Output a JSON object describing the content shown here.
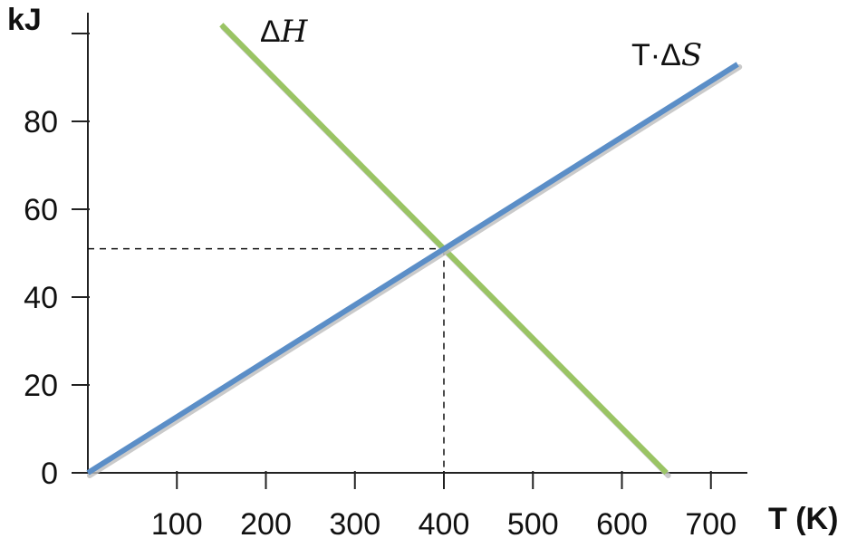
{
  "chart_data": {
    "type": "line",
    "ylabel": "kJ",
    "xlabel": "T (K)",
    "xlim": [
      0,
      750
    ],
    "ylim": [
      0,
      100
    ],
    "x_ticks": [
      100,
      200,
      300,
      400,
      500,
      600,
      700
    ],
    "y_ticks": [
      0,
      20,
      40,
      60,
      80
    ],
    "y_extra_tick": 100,
    "grid": false,
    "series": [
      {
        "name_prefix": "Δ",
        "name_italic": "H",
        "color": "#9ac464",
        "x": [
          150,
          650
        ],
        "y": [
          102,
          0
        ]
      },
      {
        "name_prefix": "T·Δ",
        "name_italic": "S",
        "color": "#5b8ec7",
        "x": [
          0,
          730
        ],
        "y": [
          0,
          93
        ]
      }
    ],
    "reference": {
      "x": 400,
      "y": 51,
      "style": "dashed"
    }
  }
}
